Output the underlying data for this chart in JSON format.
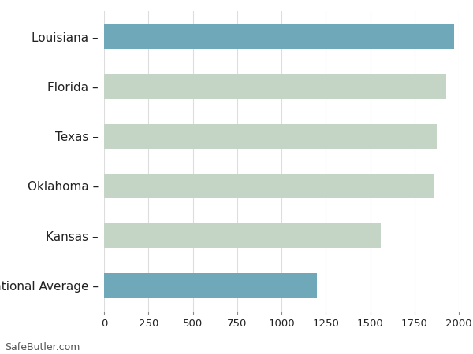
{
  "categories": [
    "National Average",
    "Kansas",
    "Oklahoma",
    "Texas",
    "Florida",
    "Louisiana"
  ],
  "values": [
    1200,
    1560,
    1860,
    1875,
    1930,
    1975
  ],
  "bar_colors": [
    "#6fa8b8",
    "#c5d5c5",
    "#c5d5c5",
    "#c5d5c5",
    "#c5d5c5",
    "#6fa8b8"
  ],
  "background_color": "#ffffff",
  "xlim": [
    0,
    2000
  ],
  "xticks": [
    0,
    250,
    500,
    750,
    1000,
    1250,
    1500,
    1750,
    2000
  ],
  "footer_text": "SafeButler.com",
  "label_fontsize": 11,
  "tick_fontsize": 9.5,
  "footer_fontsize": 9,
  "bar_height": 0.5,
  "grid_color": "#dddddd",
  "text_color": "#222222"
}
